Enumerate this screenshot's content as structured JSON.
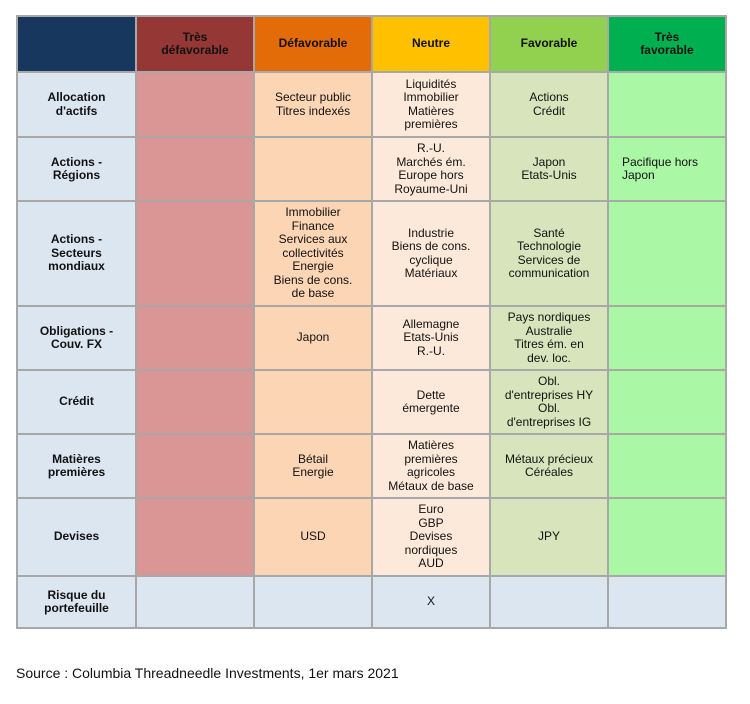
{
  "header": {
    "corner_color": "#17375e",
    "columns": [
      {
        "label": "Très\ndéfavorable",
        "color": "#953735"
      },
      {
        "label": "Défavorable",
        "color": "#e36c09"
      },
      {
        "label": "Neutre",
        "color": "#ffc000"
      },
      {
        "label": "Favorable",
        "color": "#92d050"
      },
      {
        "label": "Très\nfavorable",
        "color": "#00b050"
      }
    ]
  },
  "rows": [
    {
      "label": "Allocation\nd'actifs",
      "cells": [
        "",
        "Secteur public\nTitres indexés",
        "Liquidités\nImmobilier\nMatières\npremières",
        "Actions\nCrédit",
        ""
      ]
    },
    {
      "label": "Actions -\nRégions",
      "cells": [
        "",
        "",
        "R.-U.\nMarchés ém.\nEurope hors\nRoyaume-Uni",
        "Japon\nEtats-Unis",
        "Pacifique hors\nJapon"
      ]
    },
    {
      "label": "Actions -\nSecteurs\nmondiaux",
      "cells": [
        "",
        "Immobilier\nFinance\nServices aux\ncollectivités\nEnergie\nBiens de cons.\nde base",
        "Industrie\nBiens de cons.\ncyclique\nMatériaux",
        "Santé\nTechnologie\nServices de\ncommunication",
        ""
      ]
    },
    {
      "label": "Obligations -\nCouv. FX",
      "cells": [
        "",
        "Japon",
        "Allemagne\nEtats-Unis\nR.-U.",
        "Pays nordiques\nAustralie\nTitres ém. en\ndev. loc.",
        ""
      ]
    },
    {
      "label": "Crédit",
      "cells": [
        "",
        "",
        "Dette\némergente",
        "Obl.\nd'entreprises HY\nObl.\nd'entreprises IG",
        ""
      ]
    },
    {
      "label": "Matières\npremières",
      "cells": [
        "",
        "Bétail\nEnergie",
        "Matières\npremières\nagricoles\nMétaux de base",
        "Métaux précieux\nCéréales",
        ""
      ]
    },
    {
      "label": "Devises",
      "cells": [
        "",
        "USD",
        "Euro\nGBP\nDevises\nnordiques\nAUD",
        "JPY",
        ""
      ]
    }
  ],
  "risk_row": {
    "label": "Risque du\nportefeuille",
    "cells": [
      "",
      "",
      "X",
      "",
      ""
    ]
  },
  "source": "Source : Columbia Threadneedle Investments, 1er mars 2021"
}
